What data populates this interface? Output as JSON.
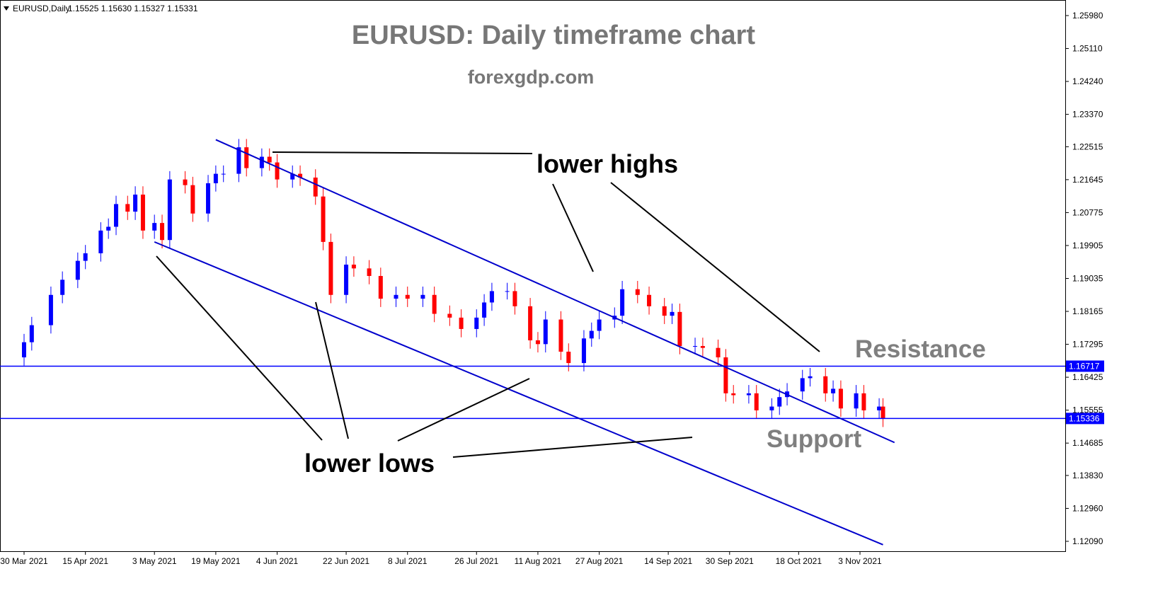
{
  "symbol_bar": {
    "symbol": "EURUSD,Daily",
    "ohlc": "1.15525 1.15630 1.15327 1.15331"
  },
  "chart_data": {
    "type": "candlestick",
    "title": "EURUSD: Daily timeframe chart",
    "subtitle": "forexgdp.com",
    "y_ticks": [
      "1.25980",
      "1.25110",
      "1.24240",
      "1.23370",
      "1.22515",
      "1.21645",
      "1.20775",
      "1.19905",
      "1.19035",
      "1.18165",
      "1.17295",
      "1.16425",
      "1.15555",
      "1.14685",
      "1.13830",
      "1.12960",
      "1.12090"
    ],
    "ylim": [
      1.118,
      1.262
    ],
    "x_ticks": [
      "30 Mar 2021",
      "15 Apr 2021",
      "3 May 2021",
      "19 May 2021",
      "4 Jun 2021",
      "22 Jun 2021",
      "8 Jul 2021",
      "26 Jul 2021",
      "11 Aug 2021",
      "27 Aug 2021",
      "14 Sep 2021",
      "30 Sep 2021",
      "18 Oct 2021",
      "3 Nov 2021"
    ],
    "levels": [
      {
        "name": "resistance",
        "value": 1.16717,
        "label": "1.16717"
      },
      {
        "name": "support",
        "value": 1.15336,
        "label": "1.15336"
      }
    ],
    "channel": {
      "upper": {
        "start_date": "2021-05-19",
        "start_price": 1.227,
        "end_date": "2021-11-12",
        "end_price": 1.147
      },
      "lower": {
        "start_date": "2021-05-03",
        "start_price": 1.2,
        "end_date": "2021-11-09",
        "end_price": 1.12
      }
    },
    "annotations": {
      "lower_highs": "lower highs",
      "lower_lows": "lower lows",
      "resistance": "Resistance",
      "support": "Support"
    },
    "series": [
      {
        "date": "2021-03-30",
        "close": 1.1735
      },
      {
        "date": "2021-04-01",
        "close": 1.178
      },
      {
        "date": "2021-04-06",
        "close": 1.186
      },
      {
        "date": "2021-04-09",
        "close": 1.19
      },
      {
        "date": "2021-04-13",
        "close": 1.195
      },
      {
        "date": "2021-04-15",
        "close": 1.197
      },
      {
        "date": "2021-04-19",
        "close": 1.203
      },
      {
        "date": "2021-04-21",
        "close": 1.204
      },
      {
        "date": "2021-04-23",
        "close": 1.21
      },
      {
        "date": "2021-04-26",
        "close": 1.208
      },
      {
        "date": "2021-04-28",
        "close": 1.2125
      },
      {
        "date": "2021-04-30",
        "close": 1.203
      },
      {
        "date": "2021-05-03",
        "close": 1.205
      },
      {
        "date": "2021-05-05",
        "close": 1.2005
      },
      {
        "date": "2021-05-07",
        "close": 1.2165
      },
      {
        "date": "2021-05-11",
        "close": 1.215
      },
      {
        "date": "2021-05-13",
        "close": 1.2075
      },
      {
        "date": "2021-05-17",
        "close": 1.2155
      },
      {
        "date": "2021-05-19",
        "close": 1.218
      },
      {
        "date": "2021-05-21",
        "close": 1.218
      },
      {
        "date": "2021-05-25",
        "close": 1.225
      },
      {
        "date": "2021-05-27",
        "close": 1.2195
      },
      {
        "date": "2021-05-31",
        "close": 1.2225
      },
      {
        "date": "2021-06-02",
        "close": 1.221
      },
      {
        "date": "2021-06-04",
        "close": 1.2165
      },
      {
        "date": "2021-06-08",
        "close": 1.218
      },
      {
        "date": "2021-06-10",
        "close": 1.217
      },
      {
        "date": "2021-06-14",
        "close": 1.212
      },
      {
        "date": "2021-06-16",
        "close": 1.2
      },
      {
        "date": "2021-06-18",
        "close": 1.186
      },
      {
        "date": "2021-06-22",
        "close": 1.194
      },
      {
        "date": "2021-06-24",
        "close": 1.193
      },
      {
        "date": "2021-06-28",
        "close": 1.191
      },
      {
        "date": "2021-07-01",
        "close": 1.185
      },
      {
        "date": "2021-07-05",
        "close": 1.186
      },
      {
        "date": "2021-07-08",
        "close": 1.185
      },
      {
        "date": "2021-07-12",
        "close": 1.186
      },
      {
        "date": "2021-07-15",
        "close": 1.181
      },
      {
        "date": "2021-07-19",
        "close": 1.18
      },
      {
        "date": "2021-07-22",
        "close": 1.177
      },
      {
        "date": "2021-07-26",
        "close": 1.18
      },
      {
        "date": "2021-07-28",
        "close": 1.184
      },
      {
        "date": "2021-07-30",
        "close": 1.187
      },
      {
        "date": "2021-08-03",
        "close": 1.187
      },
      {
        "date": "2021-08-05",
        "close": 1.183
      },
      {
        "date": "2021-08-09",
        "close": 1.174
      },
      {
        "date": "2021-08-11",
        "close": 1.173
      },
      {
        "date": "2021-08-13",
        "close": 1.1795
      },
      {
        "date": "2021-08-17",
        "close": 1.171
      },
      {
        "date": "2021-08-19",
        "close": 1.168
      },
      {
        "date": "2021-08-23",
        "close": 1.1745
      },
      {
        "date": "2021-08-25",
        "close": 1.1765
      },
      {
        "date": "2021-08-27",
        "close": 1.1795
      },
      {
        "date": "2021-08-31",
        "close": 1.1805
      },
      {
        "date": "2021-09-02",
        "close": 1.1875
      },
      {
        "date": "2021-09-06",
        "close": 1.186
      },
      {
        "date": "2021-09-09",
        "close": 1.183
      },
      {
        "date": "2021-09-13",
        "close": 1.1805
      },
      {
        "date": "2021-09-15",
        "close": 1.1815
      },
      {
        "date": "2021-09-17",
        "close": 1.1725
      },
      {
        "date": "2021-09-21",
        "close": 1.1725
      },
      {
        "date": "2021-09-23",
        "close": 1.172
      },
      {
        "date": "2021-09-27",
        "close": 1.1695
      },
      {
        "date": "2021-09-29",
        "close": 1.16
      },
      {
        "date": "2021-10-01",
        "close": 1.1595
      },
      {
        "date": "2021-10-05",
        "close": 1.16
      },
      {
        "date": "2021-10-07",
        "close": 1.1555
      },
      {
        "date": "2021-10-11",
        "close": 1.1565
      },
      {
        "date": "2021-10-13",
        "close": 1.159
      },
      {
        "date": "2021-10-15",
        "close": 1.1605
      },
      {
        "date": "2021-10-19",
        "close": 1.164
      },
      {
        "date": "2021-10-21",
        "close": 1.1645
      },
      {
        "date": "2021-10-25",
        "close": 1.16
      },
      {
        "date": "2021-10-27",
        "close": 1.1612
      },
      {
        "date": "2021-10-29",
        "close": 1.156
      },
      {
        "date": "2021-11-02",
        "close": 1.16
      },
      {
        "date": "2021-11-04",
        "close": 1.1555
      },
      {
        "date": "2021-11-08",
        "close": 1.1565
      },
      {
        "date": "2021-11-09",
        "close": 1.1533
      }
    ]
  },
  "colors": {
    "bull": "#0000ff",
    "bear": "#ff0000",
    "channel": "#0000cc",
    "level_line": "#0000ff",
    "title": "#777777",
    "annotation": "#000000",
    "label_gray": "#7f7f7f"
  }
}
